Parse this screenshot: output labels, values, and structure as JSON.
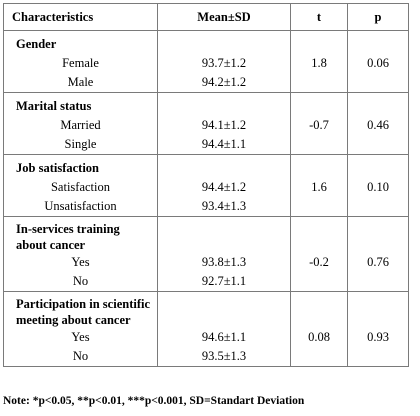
{
  "headers": {
    "characteristics": "Characteristics",
    "mean_sd": "Mean±SD",
    "t": "t",
    "p": "p"
  },
  "groups": [
    {
      "title": "Gender",
      "items": [
        "Female",
        "Male"
      ],
      "means": [
        "93.7±1.2",
        "94.2±1.2"
      ],
      "t": "1.8",
      "p": "0.06"
    },
    {
      "title": "Marital status",
      "items": [
        "Married",
        "Single"
      ],
      "means": [
        "94.1±1.2",
        "94.4±1.1"
      ],
      "t": "-0.7",
      "p": "0.46"
    },
    {
      "title": "Job satisfaction",
      "items": [
        "Satisfaction",
        "Unsatisfaction"
      ],
      "means": [
        "94.4±1.2",
        "93.4±1.3"
      ],
      "t": "1.6",
      "p": "0.10"
    },
    {
      "title": "In-services training about cancer",
      "items": [
        "Yes",
        "No"
      ],
      "means": [
        "93.8±1.3",
        "92.7±1.1"
      ],
      "t": "-0.2",
      "p": "0.76"
    },
    {
      "title": "Participation in scientific meeting about cancer",
      "items": [
        "Yes",
        "No"
      ],
      "means": [
        "94.6±1.1",
        "93.5±1.3"
      ],
      "t": "0.08",
      "p": "0.93"
    }
  ],
  "note": "Note: *p<0.05, **p<0.01, ***p<0.001, SD=Standart Deviation"
}
